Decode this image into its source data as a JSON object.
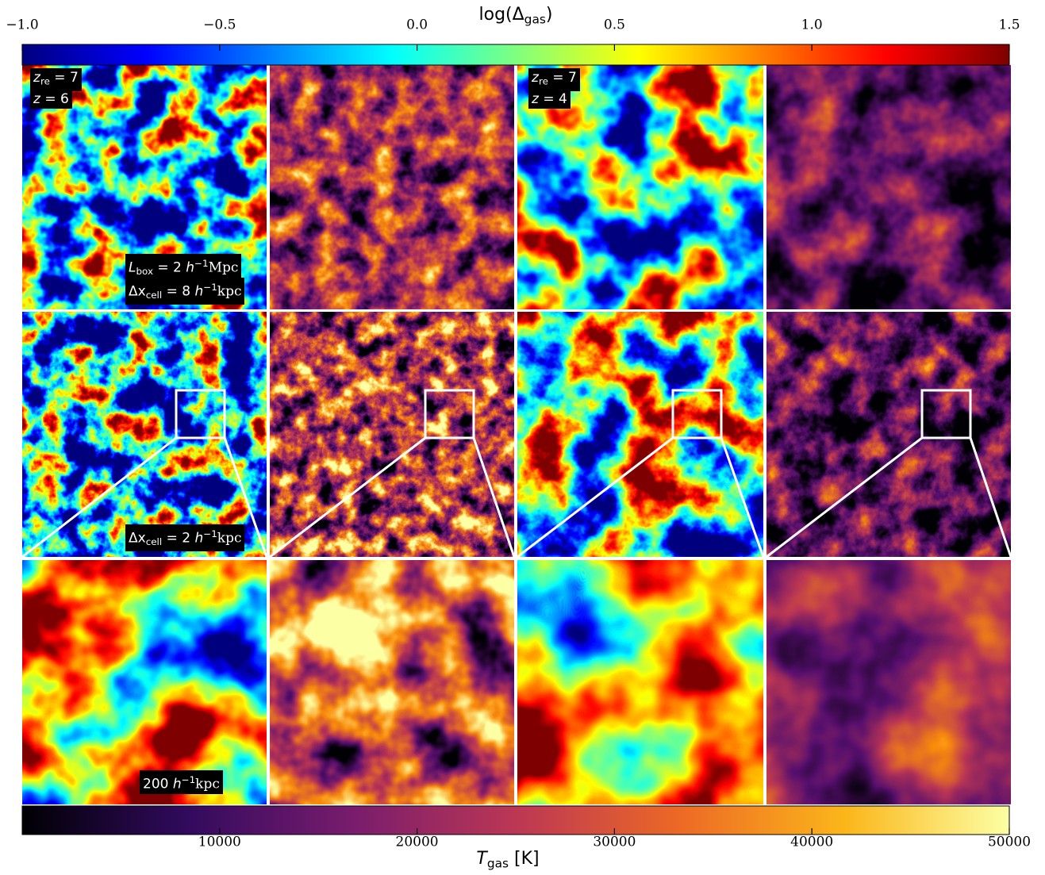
{
  "chart_data": {
    "type": "colorbar_figure",
    "colorbars": [
      {
        "label": [
          {
            "text": "log(Δ",
            "style": "normal"
          },
          {
            "text": "gas",
            "style": "sub"
          },
          {
            "text": ")",
            "style": "normal"
          }
        ],
        "colormap": "jet",
        "xlim": [
          -1.0,
          1.5
        ],
        "xticks": [
          {
            "value": -1.0,
            "label": "−1.0"
          },
          {
            "value": -0.5,
            "label": "−0.5"
          },
          {
            "value": 0,
            "label": "0.0"
          },
          {
            "value": 0.5,
            "label": "0.5"
          },
          {
            "value": 1.0,
            "label": "1.0"
          },
          {
            "value": 1.5,
            "label": "1.5"
          }
        ]
      },
      {
        "label": [
          {
            "text": "T",
            "style": "italic"
          },
          {
            "text": "gas",
            "style": "sub"
          },
          {
            "text": " [K]",
            "style": "normal"
          }
        ],
        "colormap": "inferno",
        "xlim": [
          0,
          50000
        ],
        "xticks": [
          10000,
          20000,
          30000,
          40000,
          50000
        ]
      }
    ],
    "annotations": [
      [
        {
          "text": "z",
          "style": "italic"
        },
        {
          "text": "re",
          "style": "sub"
        },
        {
          "text": " = 7",
          "style": "normal"
        }
      ],
      [
        {
          "text": "z",
          "style": "italic"
        },
        {
          "text": " = 6",
          "style": "normal"
        }
      ],
      [
        {
          "text": "L",
          "style": "italic"
        },
        {
          "text": "box",
          "style": "sub"
        },
        {
          "text": " = 2 ",
          "style": "normal"
        },
        {
          "text": "h",
          "style": "italic"
        },
        {
          "text": "−1",
          "style": "sup"
        },
        {
          "text": "Mpc",
          "style": "serif"
        }
      ],
      [
        {
          "text": "Δx",
          "style": "normal"
        },
        {
          "text": "cell",
          "style": "sub"
        },
        {
          "text": " = 8 ",
          "style": "normal"
        },
        {
          "text": "h",
          "style": "italic"
        },
        {
          "text": "−1",
          "style": "sup"
        },
        {
          "text": "kpc",
          "style": "serif"
        }
      ],
      [
        {
          "text": "Δx",
          "style": "normal"
        },
        {
          "text": "cell",
          "style": "sub"
        },
        {
          "text": " = 2 ",
          "style": "normal"
        },
        {
          "text": "h",
          "style": "italic"
        },
        {
          "text": "−1",
          "style": "sup"
        },
        {
          "text": "kpc",
          "style": "serif"
        }
      ],
      [
        {
          "text": "200 ",
          "style": "normal"
        },
        {
          "text": "h",
          "style": "italic"
        },
        {
          "text": "−1",
          "style": "sup"
        },
        {
          "text": "kpc",
          "style": "serif"
        }
      ],
      [
        {
          "text": "z",
          "style": "italic"
        },
        {
          "text": "re",
          "style": "sub"
        },
        {
          "text": " = 7",
          "style": "normal"
        }
      ],
      [
        {
          "text": "z",
          "style": "italic"
        },
        {
          "text": " = 4",
          "style": "normal"
        }
      ]
    ]
  }
}
